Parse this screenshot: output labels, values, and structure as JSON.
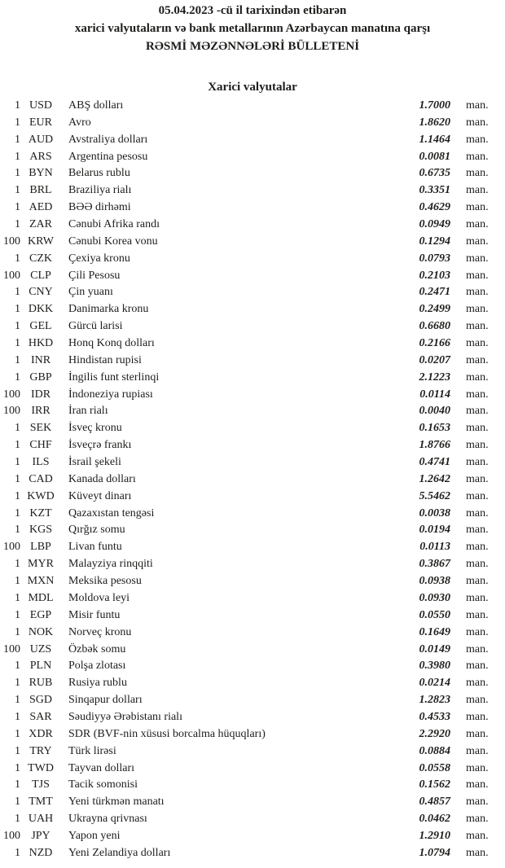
{
  "header": {
    "line1": "05.04.2023 -cü il tarixindən etibarən",
    "line2": "xarici valyutaların və bank metallarının Azərbaycan manatına qarşı",
    "line3": "RƏSMİ MƏZƏNNƏLƏRİ BÜLLETENİ",
    "section_title": "Xarici valyutalar"
  },
  "rates": {
    "unit_suffix": "man.",
    "rows": [
      {
        "qty": "1",
        "code": "USD",
        "name": "ABŞ dolları",
        "rate": "1.7000"
      },
      {
        "qty": "1",
        "code": "EUR",
        "name": "Avro",
        "rate": "1.8620"
      },
      {
        "qty": "1",
        "code": "AUD",
        "name": "Avstraliya dolları",
        "rate": "1.1464"
      },
      {
        "qty": "1",
        "code": "ARS",
        "name": "Argentina pesosu",
        "rate": "0.0081"
      },
      {
        "qty": "1",
        "code": "BYN",
        "name": "Belarus rublu",
        "rate": "0.6735"
      },
      {
        "qty": "1",
        "code": "BRL",
        "name": "Braziliya rialı",
        "rate": "0.3351"
      },
      {
        "qty": "1",
        "code": "AED",
        "name": "BƏƏ dirhəmi",
        "rate": "0.4629"
      },
      {
        "qty": "1",
        "code": "ZAR",
        "name": "Cənubi Afrika randı",
        "rate": "0.0949"
      },
      {
        "qty": "100",
        "code": "KRW",
        "name": "Cənubi Korea vonu",
        "rate": "0.1294"
      },
      {
        "qty": "1",
        "code": "CZK",
        "name": "Çexiya kronu",
        "rate": "0.0793"
      },
      {
        "qty": "100",
        "code": "CLP",
        "name": "Çili Pesosu",
        "rate": "0.2103"
      },
      {
        "qty": "1",
        "code": "CNY",
        "name": "Çin yuanı",
        "rate": "0.2471"
      },
      {
        "qty": "1",
        "code": "DKK",
        "name": "Danimarka kronu",
        "rate": "0.2499"
      },
      {
        "qty": "1",
        "code": "GEL",
        "name": "Gürcü larisi",
        "rate": "0.6680"
      },
      {
        "qty": "1",
        "code": "HKD",
        "name": "Honq Konq dolları",
        "rate": "0.2166"
      },
      {
        "qty": "1",
        "code": "INR",
        "name": "Hindistan rupisi",
        "rate": "0.0207"
      },
      {
        "qty": "1",
        "code": "GBP",
        "name": "İngilis funt sterlinqi",
        "rate": "2.1223"
      },
      {
        "qty": "100",
        "code": "IDR",
        "name": "İndoneziya rupiası",
        "rate": "0.0114"
      },
      {
        "qty": "100",
        "code": "IRR",
        "name": "İran rialı",
        "rate": "0.0040"
      },
      {
        "qty": "1",
        "code": "SEK",
        "name": "İsveç kronu",
        "rate": "0.1653"
      },
      {
        "qty": "1",
        "code": "CHF",
        "name": "İsveçrə frankı",
        "rate": "1.8766"
      },
      {
        "qty": "1",
        "code": "ILS",
        "name": "İsrail şekeli",
        "rate": "0.4741"
      },
      {
        "qty": "1",
        "code": "CAD",
        "name": "Kanada dolları",
        "rate": "1.2642"
      },
      {
        "qty": "1",
        "code": "KWD",
        "name": "Küveyt dinarı",
        "rate": "5.5462"
      },
      {
        "qty": "1",
        "code": "KZT",
        "name": "Qazaxıstan tengəsi",
        "rate": "0.0038"
      },
      {
        "qty": "1",
        "code": "KGS",
        "name": "Qırğız somu",
        "rate": "0.0194"
      },
      {
        "qty": "100",
        "code": "LBP",
        "name": "Livan funtu",
        "rate": "0.0113"
      },
      {
        "qty": "1",
        "code": "MYR",
        "name": "Malayziya rinqqiti",
        "rate": "0.3867"
      },
      {
        "qty": "1",
        "code": "MXN",
        "name": "Meksika pesosu",
        "rate": "0.0938"
      },
      {
        "qty": "1",
        "code": "MDL",
        "name": "Moldova leyi",
        "rate": "0.0930"
      },
      {
        "qty": "1",
        "code": "EGP",
        "name": "Misir funtu",
        "rate": "0.0550"
      },
      {
        "qty": "1",
        "code": "NOK",
        "name": "Norveç kronu",
        "rate": "0.1649"
      },
      {
        "qty": "100",
        "code": "UZS",
        "name": "Özbək somu",
        "rate": "0.0149"
      },
      {
        "qty": "1",
        "code": "PLN",
        "name": "Polşa zlotası",
        "rate": "0.3980"
      },
      {
        "qty": "1",
        "code": "RUB",
        "name": "Rusiya rublu",
        "rate": "0.0214"
      },
      {
        "qty": "1",
        "code": "SGD",
        "name": "Sinqapur dolları",
        "rate": "1.2823"
      },
      {
        "qty": "1",
        "code": "SAR",
        "name": "Səudiyyə Ərəbistanı rialı",
        "rate": "0.4533"
      },
      {
        "qty": "1",
        "code": "XDR",
        "name": "SDR (BVF-nin xüsusi borcalma hüquqları)",
        "rate": "2.2920"
      },
      {
        "qty": "1",
        "code": "TRY",
        "name": "Türk lirəsi",
        "rate": "0.0884"
      },
      {
        "qty": "1",
        "code": "TWD",
        "name": "Tayvan dolları",
        "rate": "0.0558"
      },
      {
        "qty": "1",
        "code": "TJS",
        "name": "Tacik somonisi",
        "rate": "0.1562"
      },
      {
        "qty": "1",
        "code": "TMT",
        "name": "Yeni türkmən manatı",
        "rate": "0.4857"
      },
      {
        "qty": "1",
        "code": "UAH",
        "name": "Ukrayna qrivnası",
        "rate": "0.0462"
      },
      {
        "qty": "100",
        "code": "JPY",
        "name": "Yapon yeni",
        "rate": "1.2910"
      },
      {
        "qty": "1",
        "code": "NZD",
        "name": "Yeni Zelandiya dolları",
        "rate": "1.0794"
      }
    ]
  }
}
